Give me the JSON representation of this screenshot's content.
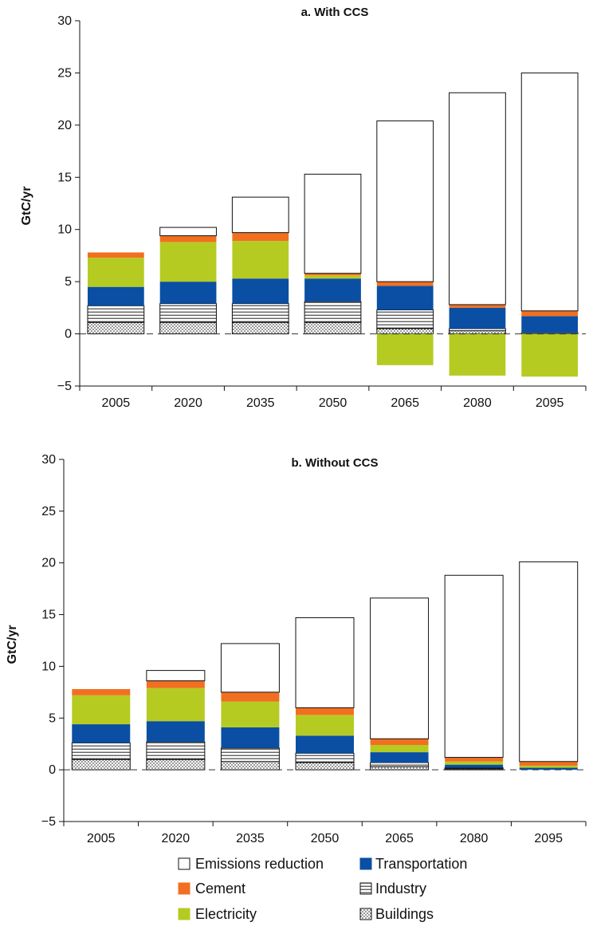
{
  "chart_data": [
    {
      "type": "bar",
      "stacked": true,
      "title": "a. With CCS",
      "ylabel": "GtC/yr",
      "ylim": [
        -5,
        30
      ],
      "yticks": [
        -5,
        0,
        5,
        10,
        15,
        20,
        25,
        30
      ],
      "categories": [
        "2005",
        "2020",
        "2035",
        "2050",
        "2065",
        "2080",
        "2095"
      ],
      "series": [
        {
          "name": "Buildings",
          "values": [
            1.1,
            1.1,
            1.1,
            1.1,
            0.5,
            0.3,
            0.1
          ]
        },
        {
          "name": "Industry",
          "values": [
            1.6,
            1.8,
            1.8,
            2.0,
            1.8,
            0.2,
            0.0
          ]
        },
        {
          "name": "Transportation",
          "values": [
            1.8,
            2.1,
            2.4,
            2.2,
            2.3,
            2.0,
            1.6
          ]
        },
        {
          "name": "Electricity",
          "values": [
            2.8,
            3.8,
            3.6,
            0.3,
            -3.0,
            -4.0,
            -4.1
          ]
        },
        {
          "name": "Cement",
          "values": [
            0.5,
            0.6,
            0.8,
            0.2,
            0.4,
            0.3,
            0.5
          ]
        },
        {
          "name": "Emissions reduction",
          "values": [
            0.0,
            0.8,
            3.4,
            9.5,
            15.4,
            20.3,
            22.8
          ]
        }
      ]
    },
    {
      "type": "bar",
      "stacked": true,
      "title": "b. Without CCS",
      "ylabel": "GtC/yr",
      "ylim": [
        -5,
        30
      ],
      "yticks": [
        -5,
        0,
        5,
        10,
        15,
        20,
        25,
        30
      ],
      "categories": [
        "2005",
        "2020",
        "2035",
        "2050",
        "2065",
        "2080",
        "2095"
      ],
      "series": [
        {
          "name": "Buildings",
          "values": [
            1.0,
            1.0,
            0.8,
            0.7,
            0.3,
            0.1,
            0.0
          ]
        },
        {
          "name": "Industry",
          "values": [
            1.6,
            1.7,
            1.3,
            0.9,
            0.4,
            0.1,
            0.0
          ]
        },
        {
          "name": "Transportation",
          "values": [
            1.8,
            2.0,
            2.0,
            1.7,
            1.0,
            0.3,
            0.2
          ]
        },
        {
          "name": "Electricity",
          "values": [
            2.8,
            3.2,
            2.5,
            2.0,
            0.7,
            0.3,
            0.2
          ]
        },
        {
          "name": "Cement",
          "values": [
            0.6,
            0.7,
            0.9,
            0.7,
            0.6,
            0.4,
            0.4
          ]
        },
        {
          "name": "Emissions reduction",
          "values": [
            0.0,
            1.0,
            4.7,
            8.7,
            13.6,
            17.6,
            19.3
          ]
        }
      ]
    }
  ],
  "legend": {
    "items": [
      {
        "name": "Emissions reduction",
        "color": "#ffffff",
        "pattern": "none"
      },
      {
        "name": "Transportation",
        "color": "#0a4fa3",
        "pattern": "none"
      },
      {
        "name": "Cement",
        "color": "#f26f21",
        "pattern": "none"
      },
      {
        "name": "Industry",
        "color": "#ffffff",
        "pattern": "horizontal-lines"
      },
      {
        "name": "Electricity",
        "color": "#b5cb22",
        "pattern": "none"
      },
      {
        "name": "Buildings",
        "color": "#ffffff",
        "pattern": "dots"
      }
    ]
  },
  "colors": {
    "Emissions reduction": "#ffffff",
    "Cement": "#f26f21",
    "Electricity": "#b5cb22",
    "Transportation": "#0a4fa3",
    "Industry": "pattern-lines",
    "Buildings": "pattern-dots"
  }
}
